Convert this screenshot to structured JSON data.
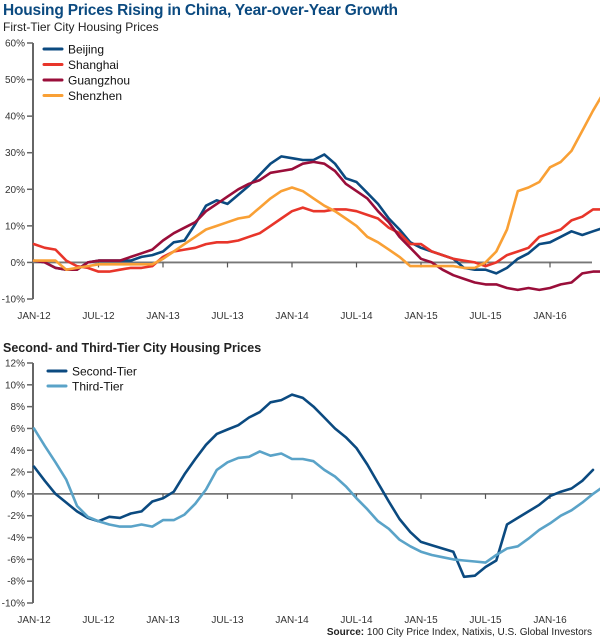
{
  "title": "Housing Prices Rising in China, Year-over-Year Growth",
  "source_label": "Source:",
  "source_text": "100 City Price Index, Natixis, U.S. Global Investors",
  "chart_data": [
    {
      "type": "line",
      "title": "First-Tier City Housing Prices",
      "xlabel": "",
      "ylabel": "",
      "ylim": [
        -10,
        60
      ],
      "yticks": [
        60,
        50,
        40,
        30,
        20,
        10,
        0,
        -10
      ],
      "ytick_labels": [
        "60%",
        "50%",
        "40%",
        "30%",
        "20%",
        "10%",
        "0%",
        "-10%"
      ],
      "xtick_labels": [
        "JAN-12",
        "JUL-12",
        "JAN-13",
        "JUL-13",
        "JAN-14",
        "JUL-14",
        "JAN-15",
        "JUL-15",
        "JAN-16"
      ],
      "xtick_months": [
        0,
        6,
        12,
        18,
        24,
        30,
        36,
        42,
        48
      ],
      "x_start": "JAN-12",
      "x_months_count": 52,
      "legend_position": "top-left",
      "grid": false,
      "series": [
        {
          "name": "Beijing",
          "color": "#0b4a80",
          "values": [
            0.5,
            0,
            -1.5,
            -2,
            -2,
            0,
            0.5,
            0.5,
            0.5,
            0.5,
            1.5,
            2,
            3,
            5.5,
            6,
            10.5,
            15.5,
            17,
            16,
            18.5,
            21,
            24,
            27,
            29,
            28.5,
            28,
            28,
            29.5,
            27,
            23,
            22,
            19,
            16,
            12,
            9,
            5.5,
            4,
            3,
            2,
            1,
            -1.5,
            -2,
            -2,
            -3,
            -1.5,
            1,
            2.5,
            5,
            5.5,
            7,
            8.5,
            7.5,
            8.5,
            9.5
          ]
        },
        {
          "name": "Shanghai",
          "color": "#e8352a",
          "values": [
            5,
            4,
            3.5,
            0.5,
            -1,
            -1.5,
            -2.5,
            -2.5,
            -2,
            -1.5,
            -1.5,
            -1,
            1.5,
            3,
            3.5,
            4,
            5,
            5.5,
            5.5,
            6,
            7,
            8,
            10,
            12,
            14,
            15,
            14,
            14,
            14.5,
            14.5,
            14,
            13,
            12,
            9.5,
            8,
            5,
            5,
            3,
            2,
            1,
            0.5,
            0,
            -1,
            0,
            2,
            3,
            4,
            7,
            8,
            9,
            11.5,
            12.5,
            14.5,
            14.5,
            14.5,
            20
          ]
        },
        {
          "name": "Guangzhou",
          "color": "#9a0e3a",
          "values": [
            0.5,
            0,
            -1.5,
            -2,
            -2,
            0,
            0.5,
            0.5,
            0.5,
            1.5,
            2.5,
            3.5,
            6,
            8,
            9.5,
            11,
            14,
            16,
            18,
            20,
            21.5,
            22.5,
            24.5,
            25,
            25.5,
            27,
            27.5,
            27,
            25,
            21.5,
            19.5,
            17.5,
            14,
            11,
            7,
            4,
            1,
            0,
            -2,
            -3.5,
            -4.5,
            -5.5,
            -6,
            -6,
            -7,
            -7.5,
            -7,
            -7.5,
            -7,
            -6,
            -5.5,
            -3,
            -2.5,
            -2.5,
            -2.5,
            -2,
            -0.5
          ]
        },
        {
          "name": "Shenzhen",
          "color": "#f9a035",
          "values": [
            0.5,
            0.5,
            0.5,
            -2,
            -1.5,
            -1,
            -0.5,
            -0.5,
            -0.5,
            -0.5,
            -0.5,
            -0.5,
            1,
            3,
            5,
            7,
            9,
            10,
            11,
            12,
            12.5,
            15,
            17.5,
            19.5,
            20.5,
            19.5,
            17.5,
            15.5,
            14,
            12,
            10,
            7,
            5.5,
            3.5,
            1.5,
            -1,
            -1,
            -1,
            -1,
            -1,
            -1.5,
            -1.5,
            0,
            3,
            9,
            19.5,
            20.5,
            22,
            26,
            27.5,
            30.5,
            36,
            41.5,
            46.5
          ]
        }
      ]
    },
    {
      "type": "line",
      "title": "Second- and Third-Tier City Housing Prices",
      "xlabel": "",
      "ylabel": "",
      "ylim": [
        -10,
        12
      ],
      "yticks": [
        12,
        10,
        8,
        6,
        4,
        2,
        0,
        -2,
        -4,
        -6,
        -8,
        -10
      ],
      "ytick_labels": [
        "12%",
        "10%",
        "8%",
        "6%",
        "4%",
        "2%",
        "0%",
        "-2%",
        "-4%",
        "-6%",
        "-8%",
        "-10%"
      ],
      "xtick_labels": [
        "JAN-12",
        "JUL-12",
        "JAN-13",
        "JUL-13",
        "JAN-14",
        "JUL-14",
        "JAN-15",
        "JUL-15",
        "JAN-16"
      ],
      "xtick_months": [
        0,
        6,
        12,
        18,
        24,
        30,
        36,
        42,
        48
      ],
      "x_start": "JAN-12",
      "legend_position": "top-left",
      "grid": false,
      "series": [
        {
          "name": "Second-Tier",
          "color": "#0b4a80",
          "values": [
            2.5,
            1.2,
            0,
            -0.8,
            -1.6,
            -2.2,
            -2.5,
            -2.1,
            -2.2,
            -1.8,
            -1.6,
            -0.7,
            -0.4,
            0.2,
            1.8,
            3.2,
            4.5,
            5.5,
            5.9,
            6.3,
            7,
            7.5,
            8.4,
            8.6,
            9.1,
            8.8,
            8,
            7,
            6,
            5.2,
            4.2,
            2.7,
            1,
            -0.7,
            -2.3,
            -3.5,
            -4.4,
            -4.7,
            -5,
            -5.3,
            -7.6,
            -7.5,
            -6.7,
            -6.1,
            -2.8,
            -2.2,
            -1.6,
            -1,
            -0.2,
            0.2,
            0.5,
            1.2,
            2.2
          ]
        },
        {
          "name": "Third-Tier",
          "color": "#5aa3c8",
          "values": [
            6,
            4.4,
            2.9,
            1.3,
            -1.1,
            -2.1,
            -2.5,
            -2.8,
            -3,
            -3,
            -2.8,
            -3,
            -2.4,
            -2.4,
            -1.9,
            -0.9,
            0.4,
            2.2,
            2.9,
            3.3,
            3.4,
            3.9,
            3.5,
            3.7,
            3.2,
            3.2,
            3,
            2.2,
            1.6,
            0.7,
            -0.4,
            -1.4,
            -2.5,
            -3.2,
            -4.2,
            -4.8,
            -5.3,
            -5.6,
            -5.8,
            -6,
            -6.1,
            -6.2,
            -6.3,
            -5.6,
            -5,
            -4.8,
            -4.1,
            -3.3,
            -2.7,
            -2,
            -1.5,
            -0.8,
            0,
            0.7
          ]
        }
      ]
    }
  ]
}
